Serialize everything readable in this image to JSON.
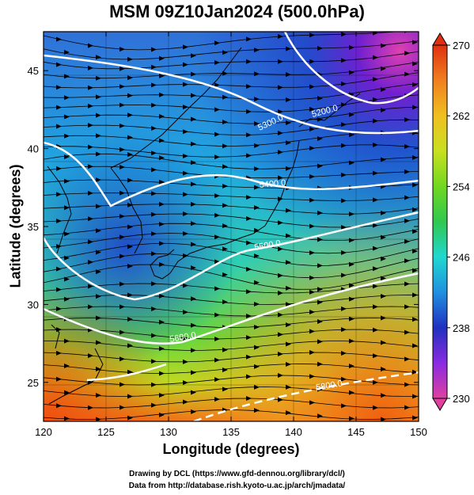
{
  "title": "MSM 09Z10Jan2024 (500.0hPa)",
  "x_label": "Longitude (degrees)",
  "y_label": "Latitude  (degrees)",
  "credits": {
    "drawing": "Drawing by DCL (https://www.gfd-dennou.org/library/dcl/)",
    "data": "Data from http://database.rish.kyoto-u.ac.jp/arch/jmadata/"
  },
  "chart_data": {
    "type": "heatmap",
    "variable": "temperature (K) shading, geopotential height contours, wind streamlines",
    "xlim": [
      120,
      150
    ],
    "ylim": [
      22.5,
      47.5
    ],
    "x_ticks": [
      "120",
      "125",
      "130",
      "135",
      "140",
      "145",
      "150"
    ],
    "y_ticks": [
      "25",
      "30",
      "35",
      "40",
      "45"
    ],
    "grid": true,
    "colorbar": {
      "range": [
        230,
        270
      ],
      "ticks": [
        "230",
        "238",
        "246",
        "254",
        "262",
        "270"
      ],
      "colors": [
        "#e040a0",
        "#8a2be2",
        "#2030c0",
        "#2090e0",
        "#20d8d0",
        "#30c850",
        "#70d820",
        "#c8e020",
        "#f0c020",
        "#f08020",
        "#e03010"
      ]
    },
    "contours": [
      {
        "label": "5200.0"
      },
      {
        "label": "5300.0"
      },
      {
        "label": "5400.0"
      },
      {
        "label": "5500.0"
      },
      {
        "label": "5600.0"
      },
      {
        "label": "5800.0"
      }
    ]
  }
}
